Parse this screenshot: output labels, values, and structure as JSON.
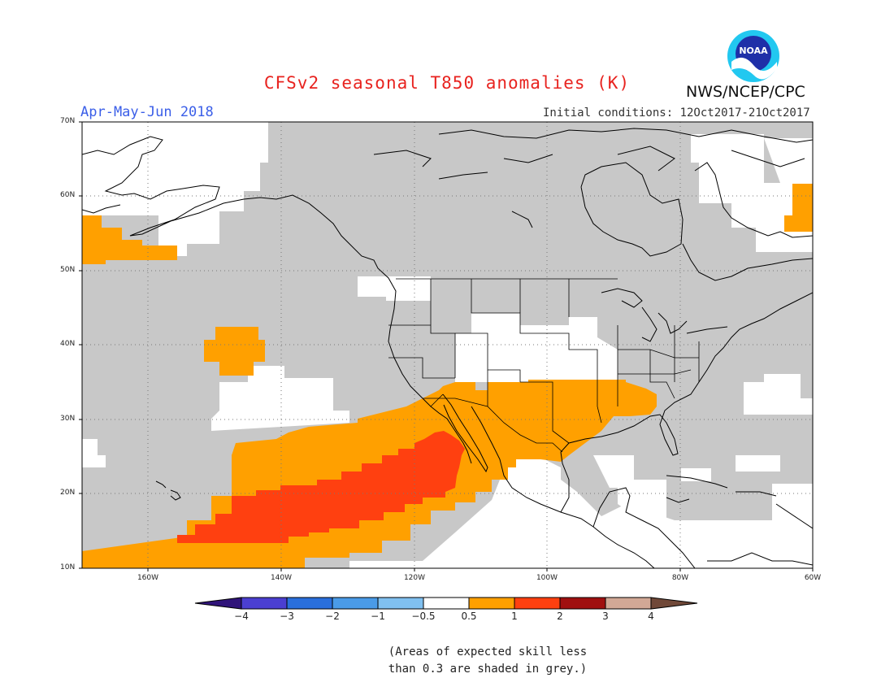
{
  "title": "CFSv2 seasonal T850 anomalies (K)",
  "season": "Apr-May-Jun 2018",
  "initial_conditions": "Initial conditions: 12Oct2017-21Oct2017",
  "agency": "NWS/NCEP/CPC",
  "logo_text": "NOAA",
  "logo_icon": "noaa-logo-icon",
  "map": {
    "lat_labels": [
      "70N",
      "60N",
      "50N",
      "40N",
      "30N",
      "20N",
      "10N"
    ],
    "lon_labels": [
      "160W",
      "140W",
      "120W",
      "100W",
      "80W",
      "60W"
    ],
    "lon_range": [
      "171W",
      "60W"
    ],
    "lat_range": [
      "10N",
      "70N"
    ],
    "graticule": "dotted",
    "skill_mask_color": "#c8c8c8",
    "land_outline_color": "#000000"
  },
  "colorbar": {
    "ticks": [
      "−4",
      "−3",
      "−2",
      "−1",
      "−0.5",
      "0.5",
      "1",
      "2",
      "3",
      "4"
    ],
    "colors": [
      "#30147a",
      "#4b3fd1",
      "#2a6fdc",
      "#4a9be8",
      "#80c0f0",
      "#ffffff",
      "#ffa000",
      "#ff4010",
      "#a01010",
      "#d2a896",
      "#704838"
    ]
  },
  "note_lines": [
    "(Areas of expected skill less",
    "than 0.3 are shaded in grey.)"
  ]
}
